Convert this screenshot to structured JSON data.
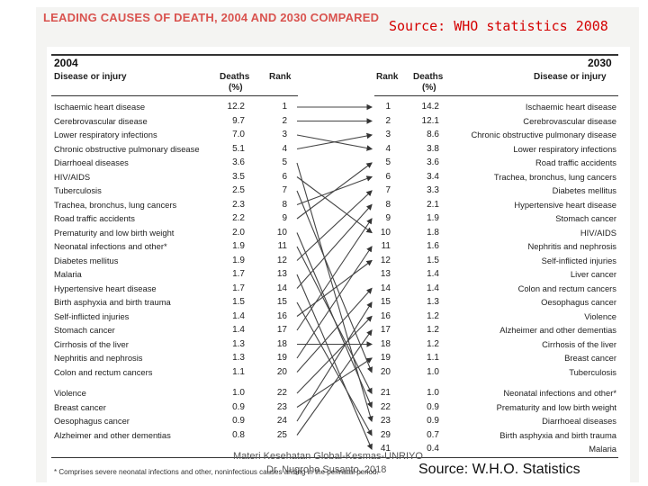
{
  "title": "LEADING CAUSES OF DEATH, 2004 AND 2030 COMPARED",
  "source_top": "Source: WHO statistics 2008",
  "source_bottom": "Source: W.H.O. Statistics",
  "credit_line1": "Materi Kesehatan Global-Kesmas-UNRIYO",
  "credit_line2": "Dr. Nugroho Susanto, 2018",
  "footnote": "* Comprises severe neonatal infections and other, noninfectious causes arising in the perinatal period.",
  "left": {
    "year": "2004",
    "col_cause": "Disease or injury",
    "col_deaths": "Deaths",
    "col_pct": "(%)",
    "col_rank": "Rank",
    "rows": [
      {
        "cause": "Ischaemic heart disease",
        "deaths": "12.2",
        "rank": "1"
      },
      {
        "cause": "Cerebrovascular disease",
        "deaths": "9.7",
        "rank": "2"
      },
      {
        "cause": "Lower respiratory infections",
        "deaths": "7.0",
        "rank": "3"
      },
      {
        "cause": "Chronic obstructive pulmonary disease",
        "deaths": "5.1",
        "rank": "4"
      },
      {
        "cause": "Diarrhoeal diseases",
        "deaths": "3.6",
        "rank": "5"
      },
      {
        "cause": "HIV/AIDS",
        "deaths": "3.5",
        "rank": "6"
      },
      {
        "cause": "Tuberculosis",
        "deaths": "2.5",
        "rank": "7"
      },
      {
        "cause": "Trachea, bronchus, lung cancers",
        "deaths": "2.3",
        "rank": "8"
      },
      {
        "cause": "Road traffic accidents",
        "deaths": "2.2",
        "rank": "9"
      },
      {
        "cause": "Prematurity and low birth weight",
        "deaths": "2.0",
        "rank": "10"
      },
      {
        "cause": "Neonatal infections and other*",
        "deaths": "1.9",
        "rank": "11"
      },
      {
        "cause": "Diabetes mellitus",
        "deaths": "1.9",
        "rank": "12"
      },
      {
        "cause": "Malaria",
        "deaths": "1.7",
        "rank": "13"
      },
      {
        "cause": "Hypertensive heart disease",
        "deaths": "1.7",
        "rank": "14"
      },
      {
        "cause": "Birth asphyxia and birth trauma",
        "deaths": "1.5",
        "rank": "15"
      },
      {
        "cause": "Self-inflicted injuries",
        "deaths": "1.4",
        "rank": "16"
      },
      {
        "cause": "Stomach cancer",
        "deaths": "1.4",
        "rank": "17"
      },
      {
        "cause": "Cirrhosis of the liver",
        "deaths": "1.3",
        "rank": "18"
      },
      {
        "cause": "Nephritis and nephrosis",
        "deaths": "1.3",
        "rank": "19"
      },
      {
        "cause": "Colon and rectum cancers",
        "deaths": "1.1",
        "rank": "20"
      },
      {
        "cause": "Violence",
        "deaths": "1.0",
        "rank": "22"
      },
      {
        "cause": "Breast cancer",
        "deaths": "0.9",
        "rank": "23"
      },
      {
        "cause": "Oesophagus cancer",
        "deaths": "0.9",
        "rank": "24"
      },
      {
        "cause": "Alzheimer and other dementias",
        "deaths": "0.8",
        "rank": "25"
      }
    ]
  },
  "right": {
    "year": "2030",
    "col_cause": "Disease or injury",
    "col_deaths": "Deaths",
    "col_pct": "(%)",
    "col_rank": "Rank",
    "rows": [
      {
        "rank": "1",
        "deaths": "14.2",
        "cause": "Ischaemic heart disease"
      },
      {
        "rank": "2",
        "deaths": "12.1",
        "cause": "Cerebrovascular disease"
      },
      {
        "rank": "3",
        "deaths": "8.6",
        "cause": "Chronic obstructive pulmonary disease"
      },
      {
        "rank": "4",
        "deaths": "3.8",
        "cause": "Lower respiratory infections"
      },
      {
        "rank": "5",
        "deaths": "3.6",
        "cause": "Road traffic accidents"
      },
      {
        "rank": "6",
        "deaths": "3.4",
        "cause": "Trachea, bronchus, lung cancers"
      },
      {
        "rank": "7",
        "deaths": "3.3",
        "cause": "Diabetes mellitus"
      },
      {
        "rank": "8",
        "deaths": "2.1",
        "cause": "Hypertensive heart disease"
      },
      {
        "rank": "9",
        "deaths": "1.9",
        "cause": "Stomach cancer"
      },
      {
        "rank": "10",
        "deaths": "1.8",
        "cause": "HIV/AIDS"
      },
      {
        "rank": "11",
        "deaths": "1.6",
        "cause": "Nephritis and nephrosis"
      },
      {
        "rank": "12",
        "deaths": "1.5",
        "cause": "Self-inflicted injuries"
      },
      {
        "rank": "13",
        "deaths": "1.4",
        "cause": "Liver cancer"
      },
      {
        "rank": "14",
        "deaths": "1.4",
        "cause": "Colon and rectum cancers"
      },
      {
        "rank": "15",
        "deaths": "1.3",
        "cause": "Oesophagus cancer"
      },
      {
        "rank": "16",
        "deaths": "1.2",
        "cause": "Violence"
      },
      {
        "rank": "17",
        "deaths": "1.2",
        "cause": "Alzheimer and other dementias"
      },
      {
        "rank": "18",
        "deaths": "1.2",
        "cause": "Cirrhosis of the liver"
      },
      {
        "rank": "19",
        "deaths": "1.1",
        "cause": "Breast cancer"
      },
      {
        "rank": "20",
        "deaths": "1.0",
        "cause": "Tuberculosis"
      },
      {
        "rank": "21",
        "deaths": "1.0",
        "cause": "Neonatal infections and other*"
      },
      {
        "rank": "22",
        "deaths": "0.9",
        "cause": "Prematurity and low birth weight"
      },
      {
        "rank": "23",
        "deaths": "0.9",
        "cause": "Diarrhoeal diseases"
      },
      {
        "rank": "29",
        "deaths": "0.7",
        "cause": "Birth asphyxia and birth trauma"
      },
      {
        "rank": "41",
        "deaths": "0.4",
        "cause": "Malaria"
      }
    ]
  },
  "connections": [
    {
      "from": "1",
      "to": "1"
    },
    {
      "from": "2",
      "to": "2"
    },
    {
      "from": "3",
      "to": "4"
    },
    {
      "from": "4",
      "to": "3"
    },
    {
      "from": "5",
      "to": "23"
    },
    {
      "from": "6",
      "to": "10"
    },
    {
      "from": "7",
      "to": "20"
    },
    {
      "from": "8",
      "to": "6"
    },
    {
      "from": "9",
      "to": "5"
    },
    {
      "from": "10",
      "to": "22"
    },
    {
      "from": "11",
      "to": "21"
    },
    {
      "from": "12",
      "to": "7"
    },
    {
      "from": "13",
      "to": "41"
    },
    {
      "from": "14",
      "to": "8"
    },
    {
      "from": "15",
      "to": "29"
    },
    {
      "from": "16",
      "to": "12"
    },
    {
      "from": "17",
      "to": "9"
    },
    {
      "from": "18",
      "to": "18"
    },
    {
      "from": "19",
      "to": "11"
    },
    {
      "from": "20",
      "to": "14"
    },
    {
      "from": "22",
      "to": "16"
    },
    {
      "from": "23",
      "to": "19"
    },
    {
      "from": "24",
      "to": "15"
    },
    {
      "from": "25",
      "to": "17"
    }
  ]
}
